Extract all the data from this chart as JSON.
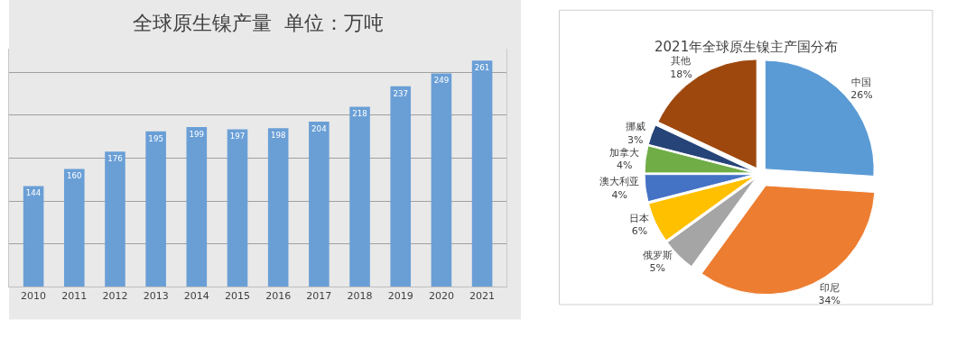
{
  "chart_data": [
    {
      "type": "bar",
      "title": "全球原生镍产量  单位：万吨",
      "categories": [
        "2010",
        "2011",
        "2012",
        "2013",
        "2014",
        "2015",
        "2016",
        "2017",
        "2018",
        "2019",
        "2020",
        "2021"
      ],
      "values": [
        144,
        160,
        176,
        195,
        199,
        197,
        198,
        204,
        218,
        237,
        249,
        261
      ],
      "color": "#6a9fd6",
      "data_labels": true,
      "ylim": [
        50,
        272
      ],
      "yticks": [
        {
          "value": 50,
          "label": null
        },
        {
          "value": 90,
          "label": null
        },
        {
          "value": 130,
          "label": null
        },
        {
          "value": 170,
          "label": null
        },
        {
          "value": 210,
          "label": null
        },
        {
          "value": 250,
          "label": null
        }
      ],
      "tick_labels": "x",
      "grid": "y"
    },
    {
      "type": "pie",
      "title": "2021年全球原生镍主产国分布",
      "categories": [
        "中国",
        "印尼",
        "俄罗斯",
        "日本",
        "澳大利亚",
        "加拿大",
        "挪威",
        "其他"
      ],
      "values": [
        26,
        34,
        5,
        6,
        4,
        4,
        3,
        18
      ],
      "colors": [
        "#5b9bd5",
        "#ed7d31",
        "#a5a5a5",
        "#ffc000",
        "#4472c4",
        "#70ad47",
        "#264478",
        "#9e480e"
      ],
      "value_labels": [
        "26%",
        "34%",
        "5%",
        "6%",
        "4%",
        "4%",
        "3%",
        "18%"
      ]
    }
  ]
}
